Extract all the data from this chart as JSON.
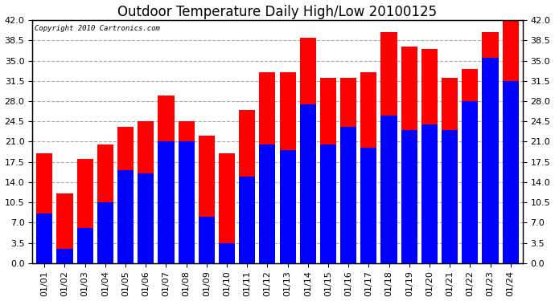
{
  "title": "Outdoor Temperature Daily High/Low 20100125",
  "copyright": "Copyright 2010 Cartronics.com",
  "dates": [
    "01/01",
    "01/02",
    "01/03",
    "01/04",
    "01/05",
    "01/06",
    "01/07",
    "01/08",
    "01/09",
    "01/10",
    "01/11",
    "01/12",
    "01/13",
    "01/14",
    "01/15",
    "01/16",
    "01/17",
    "01/18",
    "01/19",
    "01/20",
    "01/21",
    "01/22",
    "01/23",
    "01/24"
  ],
  "highs": [
    19.0,
    12.0,
    18.0,
    20.5,
    23.5,
    24.5,
    29.0,
    24.5,
    22.0,
    19.0,
    26.5,
    33.0,
    33.0,
    39.0,
    32.0,
    32.0,
    33.0,
    40.0,
    37.5,
    37.0,
    32.0,
    33.5,
    40.0,
    42.0
  ],
  "lows": [
    8.5,
    2.5,
    6.0,
    10.5,
    16.0,
    15.5,
    21.0,
    21.0,
    8.0,
    3.5,
    15.0,
    20.5,
    19.5,
    27.5,
    20.5,
    23.5,
    20.0,
    25.5,
    23.0,
    24.0,
    23.0,
    28.0,
    35.5,
    31.5
  ],
  "high_color": "#ff0000",
  "low_color": "#0000ff",
  "bg_color": "#ffffff",
  "plot_bg_color": "#ffffff",
  "grid_color": "#aaaaaa",
  "ylim": [
    0,
    42
  ],
  "yticks": [
    0.0,
    3.5,
    7.0,
    10.5,
    14.0,
    17.5,
    21.0,
    24.5,
    28.0,
    31.5,
    35.0,
    38.5,
    42.0
  ],
  "title_fontsize": 12,
  "tick_fontsize": 8,
  "bar_width": 0.8,
  "figwidth": 6.9,
  "figheight": 3.75,
  "dpi": 100
}
